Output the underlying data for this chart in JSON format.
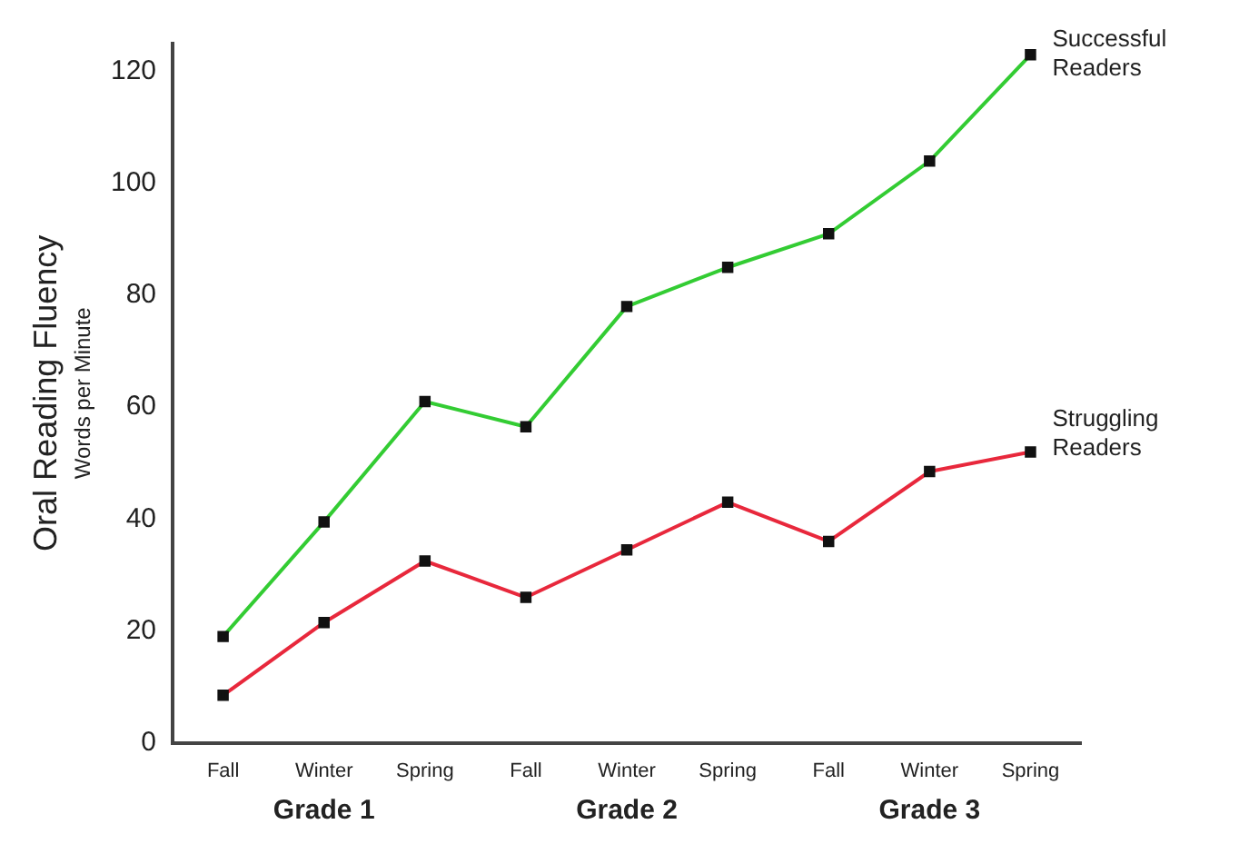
{
  "chart_data": {
    "type": "line",
    "ylabel": "Oral Reading Fluency",
    "subtitle": "Words per Minute",
    "categories": [
      "Fall",
      "Winter",
      "Spring",
      "Fall",
      "Winter",
      "Spring",
      "Fall",
      "Winter",
      "Spring"
    ],
    "series": [
      {
        "name": "Successful Readers",
        "color": "#33cc33",
        "values": [
          19,
          39.5,
          61,
          56.5,
          78,
          85,
          91,
          104,
          123
        ]
      },
      {
        "name": "Struggling Readers",
        "color": "#e8283c",
        "values": [
          8.5,
          21.5,
          32.5,
          26,
          34.5,
          43,
          36,
          48.5,
          52
        ]
      }
    ],
    "annotations": [
      "Grade 1",
      "Grade 2",
      "Grade 3"
    ],
    "ylim": [
      0,
      125
    ],
    "yticks": [
      0,
      20,
      40,
      60,
      80,
      100,
      120
    ],
    "grid": false,
    "legend": false,
    "marker": "square",
    "line_style": "solid"
  }
}
